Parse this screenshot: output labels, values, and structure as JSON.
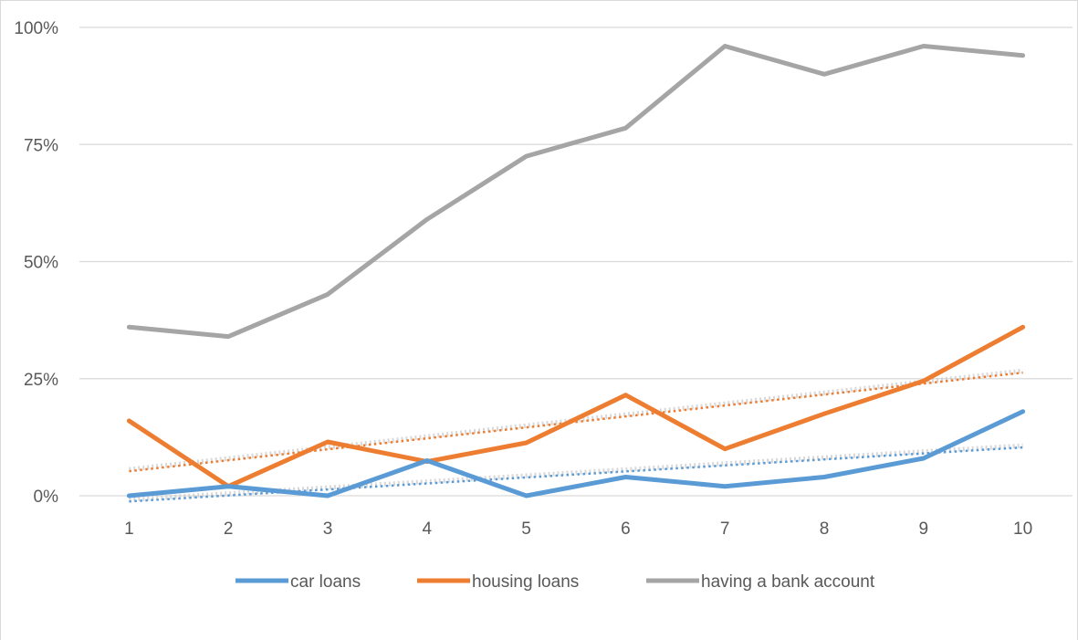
{
  "chart_data": {
    "type": "line",
    "title": "",
    "xlabel": "",
    "ylabel": "",
    "categories": [
      "1",
      "2",
      "3",
      "4",
      "5",
      "6",
      "7",
      "8",
      "9",
      "10"
    ],
    "y_ticks": [
      "0%",
      "25%",
      "50%",
      "75%",
      "100%"
    ],
    "ylim": [
      0,
      100
    ],
    "grid": true,
    "legend_position": "bottom",
    "series": [
      {
        "name": "car loans",
        "color": "#5B9BD5",
        "values": [
          0,
          2,
          0,
          7.5,
          0,
          4,
          2,
          4,
          8,
          18
        ],
        "trendline": true
      },
      {
        "name": "housing loans",
        "color": "#ED7D31",
        "values": [
          16,
          2,
          11.5,
          7.3,
          11.3,
          21.5,
          10,
          17.5,
          24.5,
          36
        ],
        "trendline": true
      },
      {
        "name": "having a bank account",
        "color": "#A5A5A5",
        "values": [
          36,
          34,
          43,
          59,
          72.5,
          78.5,
          96,
          90,
          96,
          94
        ],
        "trendline": false
      }
    ]
  }
}
